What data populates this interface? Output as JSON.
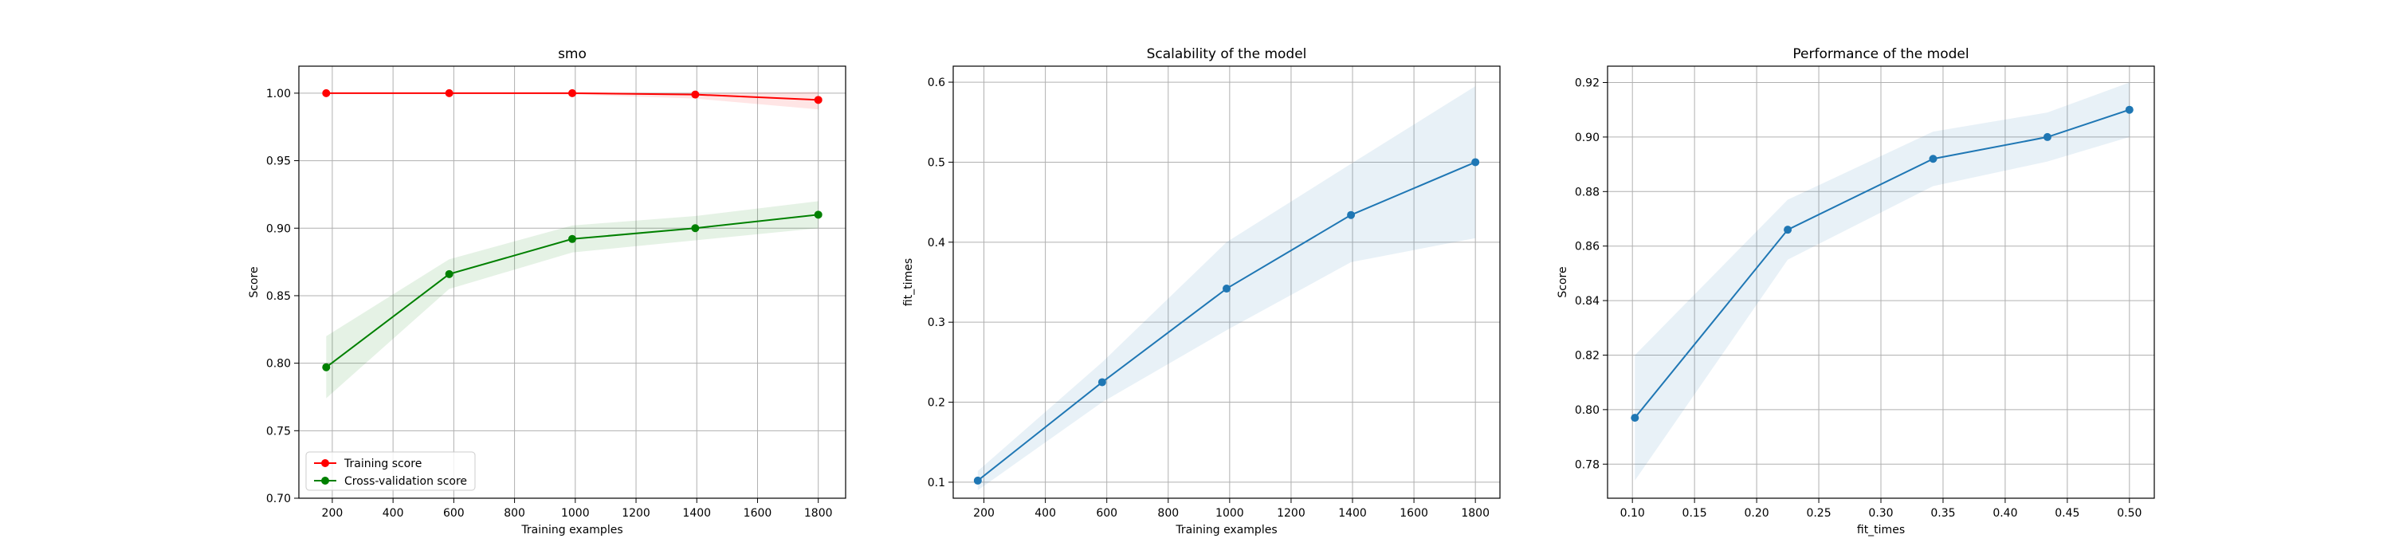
{
  "chart_data": [
    {
      "type": "line",
      "title": "smo",
      "xlabel": "Training examples",
      "ylabel": "Score",
      "xlim": [
        90,
        1890
      ],
      "ylim": [
        0.7,
        1.02
      ],
      "xticks": [
        200,
        400,
        600,
        800,
        1000,
        1200,
        1400,
        1600,
        1800
      ],
      "xtick_labels": [
        "200",
        "400",
        "600",
        "800",
        "1000",
        "1200",
        "1400",
        "1600",
        "1800"
      ],
      "yticks": [
        0.7,
        0.75,
        0.8,
        0.85,
        0.9,
        0.95,
        1.0
      ],
      "ytick_labels": [
        "0.70",
        "0.75",
        "0.80",
        "0.85",
        "0.90",
        "0.95",
        "1.00"
      ],
      "grid": true,
      "legend": "lower-left",
      "x": [
        180,
        585,
        990,
        1395,
        1800
      ],
      "series": [
        {
          "name": "Training score",
          "color": "#ff0000",
          "values": [
            1.0,
            1.0,
            1.0,
            0.999,
            0.995
          ],
          "band_lower": [
            1.0,
            1.0,
            0.999,
            0.996,
            0.988
          ],
          "band_upper": [
            1.0,
            1.0,
            1.0,
            1.0,
            1.001
          ]
        },
        {
          "name": "Cross-validation score",
          "color": "#008000",
          "values": [
            0.797,
            0.866,
            0.892,
            0.9,
            0.91
          ],
          "band_lower": [
            0.774,
            0.855,
            0.882,
            0.891,
            0.9
          ],
          "band_upper": [
            0.82,
            0.877,
            0.902,
            0.909,
            0.92
          ]
        }
      ]
    },
    {
      "type": "line",
      "title": "Scalability of the model",
      "xlabel": "Training examples",
      "ylabel": "fit_times",
      "xlim": [
        100,
        1880
      ],
      "ylim": [
        0.08,
        0.62
      ],
      "xticks": [
        200,
        400,
        600,
        800,
        1000,
        1200,
        1400,
        1600,
        1800
      ],
      "xtick_labels": [
        "200",
        "400",
        "600",
        "800",
        "1000",
        "1200",
        "1400",
        "1600",
        "1800"
      ],
      "yticks": [
        0.1,
        0.2,
        0.3,
        0.4,
        0.5,
        0.6
      ],
      "ytick_labels": [
        "0.1",
        "0.2",
        "0.3",
        "0.4",
        "0.5",
        "0.6"
      ],
      "grid": true,
      "x": [
        180,
        585,
        990,
        1395,
        1800
      ],
      "series": [
        {
          "color": "#1f77b4",
          "values": [
            0.102,
            0.225,
            0.342,
            0.434,
            0.5
          ],
          "band_lower": [
            0.09,
            0.2,
            0.29,
            0.375,
            0.405
          ],
          "band_upper": [
            0.114,
            0.25,
            0.4,
            0.498,
            0.595
          ]
        }
      ]
    },
    {
      "type": "line",
      "title": "Performance of the model",
      "xlabel": "fit_times",
      "ylabel": "Score",
      "xlim": [
        0.08,
        0.52
      ],
      "ylim": [
        0.7675,
        0.926
      ],
      "xticks": [
        0.1,
        0.15,
        0.2,
        0.25,
        0.3,
        0.35,
        0.4,
        0.45,
        0.5
      ],
      "xtick_labels": [
        "0.10",
        "0.15",
        "0.20",
        "0.25",
        "0.30",
        "0.35",
        "0.40",
        "0.45",
        "0.50"
      ],
      "yticks": [
        0.78,
        0.8,
        0.82,
        0.84,
        0.86,
        0.88,
        0.9,
        0.92
      ],
      "ytick_labels": [
        "0.78",
        "0.80",
        "0.82",
        "0.84",
        "0.86",
        "0.88",
        "0.90",
        "0.92"
      ],
      "grid": true,
      "x": [
        0.102,
        0.225,
        0.342,
        0.434,
        0.5
      ],
      "series": [
        {
          "color": "#1f77b4",
          "values": [
            0.797,
            0.866,
            0.892,
            0.9,
            0.91
          ],
          "band_lower": [
            0.774,
            0.855,
            0.882,
            0.891,
            0.9
          ],
          "band_upper": [
            0.82,
            0.877,
            0.902,
            0.909,
            0.92
          ]
        }
      ]
    }
  ]
}
